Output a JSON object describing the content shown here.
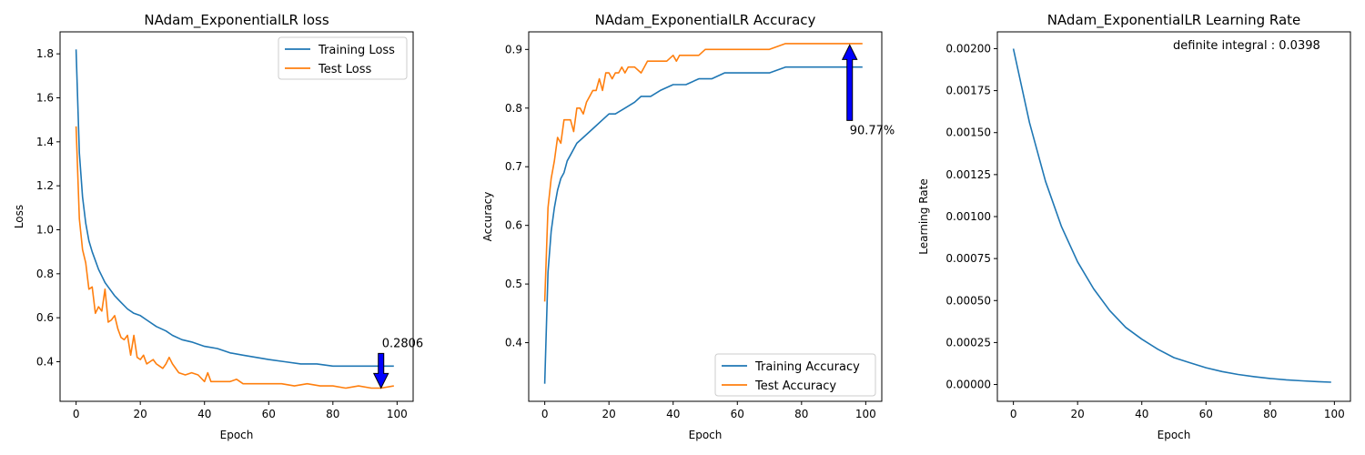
{
  "chart_data": [
    {
      "type": "line",
      "title": "NAdam_ExponentialLR loss",
      "xlabel": "Epoch",
      "ylabel": "Loss",
      "xlim": [
        -5,
        105
      ],
      "ylim": [
        0.22,
        1.9
      ],
      "xticks": [
        0,
        20,
        40,
        60,
        80,
        100
      ],
      "xtick_labels": [
        "0",
        "20",
        "40",
        "60",
        "80",
        "100"
      ],
      "yticks": [
        0.4,
        0.6,
        0.8,
        1.0,
        1.2,
        1.4,
        1.6,
        1.8
      ],
      "ytick_labels": [
        "0.4",
        "0.6",
        "0.8",
        "1.0",
        "1.2",
        "1.4",
        "1.6",
        "1.8"
      ],
      "legend_position": "top-right",
      "grid": false,
      "series": [
        {
          "name": "Training Loss",
          "color": "#1f77b4",
          "x": [
            0,
            1,
            2,
            3,
            4,
            5,
            6,
            7,
            8,
            9,
            10,
            12,
            14,
            16,
            18,
            20,
            22,
            25,
            28,
            30,
            33,
            36,
            40,
            44,
            48,
            52,
            56,
            60,
            65,
            70,
            75,
            80,
            85,
            90,
            95,
            99
          ],
          "values": [
            1.82,
            1.35,
            1.15,
            1.03,
            0.95,
            0.9,
            0.86,
            0.82,
            0.79,
            0.76,
            0.74,
            0.7,
            0.67,
            0.64,
            0.62,
            0.61,
            0.59,
            0.56,
            0.54,
            0.52,
            0.5,
            0.49,
            0.47,
            0.46,
            0.44,
            0.43,
            0.42,
            0.41,
            0.4,
            0.39,
            0.39,
            0.38,
            0.38,
            0.38,
            0.38,
            0.38
          ]
        },
        {
          "name": "Test Loss",
          "color": "#ff7f0e",
          "x": [
            0,
            1,
            2,
            3,
            4,
            5,
            6,
            7,
            8,
            9,
            10,
            11,
            12,
            13,
            14,
            15,
            16,
            17,
            18,
            19,
            20,
            21,
            22,
            23,
            24,
            25,
            26,
            27,
            28,
            29,
            30,
            32,
            34,
            36,
            38,
            40,
            41,
            42,
            44,
            48,
            50,
            52,
            56,
            60,
            64,
            68,
            72,
            76,
            80,
            84,
            88,
            92,
            95,
            99
          ],
          "values": [
            1.47,
            1.05,
            0.91,
            0.85,
            0.73,
            0.74,
            0.62,
            0.65,
            0.63,
            0.73,
            0.58,
            0.59,
            0.61,
            0.55,
            0.51,
            0.5,
            0.52,
            0.43,
            0.52,
            0.42,
            0.41,
            0.43,
            0.39,
            0.4,
            0.41,
            0.39,
            0.38,
            0.37,
            0.39,
            0.42,
            0.39,
            0.35,
            0.34,
            0.35,
            0.34,
            0.31,
            0.35,
            0.31,
            0.31,
            0.31,
            0.32,
            0.3,
            0.3,
            0.3,
            0.3,
            0.29,
            0.3,
            0.29,
            0.29,
            0.28,
            0.29,
            0.28,
            0.28,
            0.29
          ]
        }
      ],
      "annotation": {
        "text": "0.2806",
        "point": [
          95,
          0.2806
        ],
        "arrow_direction": "down"
      }
    },
    {
      "type": "line",
      "title": "NAdam_ExponentialLR Accuracy",
      "xlabel": "Epoch",
      "ylabel": "Accuracy",
      "xlim": [
        -5,
        105
      ],
      "ylim": [
        0.3,
        0.93
      ],
      "xticks": [
        0,
        20,
        40,
        60,
        80,
        100
      ],
      "xtick_labels": [
        "0",
        "20",
        "40",
        "60",
        "80",
        "100"
      ],
      "yticks": [
        0.4,
        0.5,
        0.6,
        0.7,
        0.8,
        0.9
      ],
      "ytick_labels": [
        "0.4",
        "0.5",
        "0.6",
        "0.7",
        "0.8",
        "0.9"
      ],
      "legend_position": "bottom-right",
      "grid": false,
      "series": [
        {
          "name": "Training Accuracy",
          "color": "#1f77b4",
          "x": [
            0,
            1,
            2,
            3,
            4,
            5,
            6,
            7,
            8,
            10,
            12,
            14,
            16,
            18,
            20,
            22,
            25,
            28,
            30,
            33,
            36,
            40,
            44,
            48,
            52,
            56,
            60,
            65,
            70,
            75,
            80,
            85,
            90,
            95,
            99
          ],
          "values": [
            0.33,
            0.52,
            0.59,
            0.63,
            0.66,
            0.68,
            0.69,
            0.71,
            0.72,
            0.74,
            0.75,
            0.76,
            0.77,
            0.78,
            0.79,
            0.79,
            0.8,
            0.81,
            0.82,
            0.82,
            0.83,
            0.84,
            0.84,
            0.85,
            0.85,
            0.86,
            0.86,
            0.86,
            0.86,
            0.87,
            0.87,
            0.87,
            0.87,
            0.87,
            0.87
          ]
        },
        {
          "name": "Test Accuracy",
          "color": "#ff7f0e",
          "x": [
            0,
            1,
            2,
            3,
            4,
            5,
            6,
            7,
            8,
            9,
            10,
            11,
            12,
            13,
            14,
            15,
            16,
            17,
            18,
            19,
            20,
            21,
            22,
            23,
            24,
            25,
            26,
            28,
            30,
            31,
            32,
            34,
            36,
            38,
            40,
            41,
            42,
            44,
            46,
            48,
            50,
            52,
            55,
            58,
            60,
            62,
            65,
            70,
            75,
            80,
            85,
            90,
            95,
            99
          ],
          "values": [
            0.47,
            0.63,
            0.68,
            0.71,
            0.75,
            0.74,
            0.78,
            0.78,
            0.78,
            0.76,
            0.8,
            0.8,
            0.79,
            0.81,
            0.82,
            0.83,
            0.83,
            0.85,
            0.83,
            0.86,
            0.86,
            0.85,
            0.86,
            0.86,
            0.87,
            0.86,
            0.87,
            0.87,
            0.86,
            0.87,
            0.88,
            0.88,
            0.88,
            0.88,
            0.89,
            0.88,
            0.89,
            0.89,
            0.89,
            0.89,
            0.9,
            0.9,
            0.9,
            0.9,
            0.9,
            0.9,
            0.9,
            0.9,
            0.91,
            0.91,
            0.91,
            0.91,
            0.91,
            0.91
          ]
        }
      ],
      "annotation": {
        "text": "90.77%",
        "point": [
          95,
          0.9077
        ],
        "arrow_direction": "up"
      }
    },
    {
      "type": "line",
      "title": "NAdam_ExponentialLR Learning Rate",
      "xlabel": "Epoch",
      "ylabel": "Learning Rate",
      "xlim": [
        -5,
        105
      ],
      "ylim": [
        -0.0001,
        0.0021
      ],
      "xticks": [
        0,
        20,
        40,
        60,
        80,
        100
      ],
      "xtick_labels": [
        "0",
        "20",
        "40",
        "60",
        "80",
        "100"
      ],
      "yticks": [
        0,
        0.00025,
        0.0005,
        0.00075,
        0.001,
        0.00125,
        0.0015,
        0.00175,
        0.002
      ],
      "ytick_labels": [
        "0.00000",
        "0.00025",
        "0.00050",
        "0.00075",
        "0.00100",
        "0.00125",
        "0.00150",
        "0.00175",
        "0.00200"
      ],
      "grid": false,
      "series": [
        {
          "color": "#1f77b4",
          "x": [
            0,
            5,
            10,
            15,
            20,
            25,
            30,
            35,
            40,
            45,
            50,
            55,
            60,
            65,
            70,
            75,
            80,
            85,
            90,
            95,
            99
          ],
          "values": [
            0.002,
            0.00156,
            0.00121,
            0.00094,
            0.00073,
            0.00057,
            0.00044,
            0.00034,
            0.00027,
            0.00021,
            0.00016,
            0.00013,
            0.0001,
            7.7e-05,
            6e-05,
            4.7e-05,
            3.6e-05,
            2.8e-05,
            2.2e-05,
            1.7e-05,
            1.4e-05
          ]
        }
      ],
      "text_annotation": "definite integral : 0.0398"
    }
  ]
}
